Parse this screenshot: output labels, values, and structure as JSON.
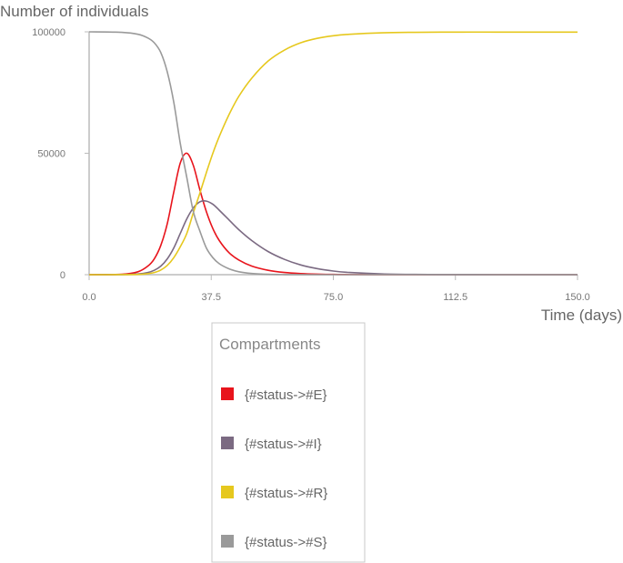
{
  "chart_data": {
    "type": "line",
    "ylabel": "Number of individuals",
    "xlabel": "Time (days)",
    "xlim": [
      0,
      150
    ],
    "ylim": [
      0,
      100000
    ],
    "x_ticks": [
      "0.0",
      "37.5",
      "75.0",
      "112.5",
      "150.0"
    ],
    "y_ticks": [
      "0",
      "50000",
      "100000"
    ],
    "grid": false,
    "legend": {
      "title": "Compartments",
      "placement": "bottom-center"
    },
    "x": [
      0,
      10,
      15,
      18,
      20,
      22,
      24,
      26,
      28,
      30,
      32,
      34,
      36,
      38,
      40,
      43,
      46,
      50,
      55,
      60,
      65,
      70,
      75,
      80,
      90,
      100,
      112.5,
      125,
      137.5,
      150
    ],
    "series": [
      {
        "name": "{#status->#E}",
        "color": "#e8141c",
        "values": [
          0,
          150,
          1200,
          3500,
          6500,
          12000,
          21000,
          34000,
          46000,
          50000,
          45000,
          35000,
          26000,
          19000,
          14000,
          9000,
          6000,
          3500,
          1800,
          900,
          450,
          220,
          100,
          50,
          10,
          0,
          0,
          0,
          0,
          0
        ]
      },
      {
        "name": "{#status->#I}",
        "color": "#7b6a82",
        "values": [
          0,
          30,
          300,
          900,
          1800,
          3500,
          6500,
          11000,
          17000,
          23000,
          27500,
          30000,
          30300,
          29000,
          26500,
          22500,
          18500,
          14000,
          9500,
          6300,
          4000,
          2500,
          1500,
          900,
          300,
          100,
          20,
          5,
          0,
          0
        ]
      },
      {
        "name": "{#status->#R}",
        "color": "#e6c81e",
        "values": [
          0,
          10,
          100,
          400,
          900,
          1900,
          3800,
          7000,
          11500,
          17000,
          25500,
          33500,
          42000,
          50000,
          57000,
          66000,
          73500,
          81000,
          88000,
          92500,
          95500,
          97300,
          98400,
          99000,
          99600,
          99800,
          99900,
          99900,
          99900,
          99900
        ]
      },
      {
        "name": "{#status->#S}",
        "color": "#9a9a9a",
        "values": [
          100000,
          99800,
          99000,
          97500,
          95500,
          91500,
          83500,
          71000,
          54000,
          40000,
          26000,
          18000,
          11000,
          7000,
          4500,
          2400,
          1200,
          500,
          150,
          40,
          10,
          0,
          0,
          0,
          0,
          0,
          0,
          0,
          0,
          0
        ]
      }
    ]
  }
}
